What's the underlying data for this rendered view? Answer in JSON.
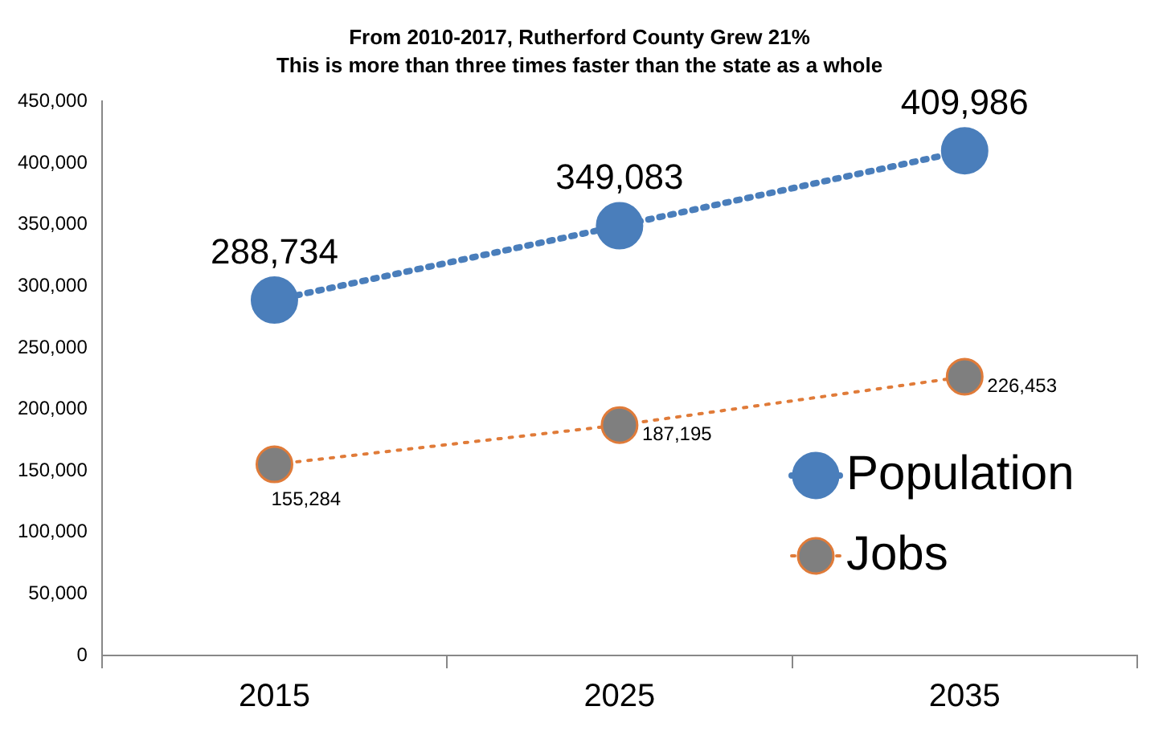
{
  "chart_data": {
    "type": "line",
    "title": "From 2010-2017, Rutherford County Grew 21%",
    "subtitle": "This is more than three times faster than the state as a whole",
    "categories": [
      "2015",
      "2025",
      "2035"
    ],
    "series": [
      {
        "name": "Population",
        "color": "#4a7ebb",
        "values": [
          288734,
          349083,
          409986
        ],
        "value_labels": [
          "288,734",
          "349,083",
          "409,986"
        ]
      },
      {
        "name": "Jobs",
        "color": "#e07b39",
        "values": [
          155284,
          187195,
          226453
        ],
        "value_labels": [
          "155,284",
          "187,195",
          "226,453"
        ]
      }
    ],
    "ylim": [
      0,
      450000
    ],
    "yticks": [
      {
        "value": 0,
        "label": "0"
      },
      {
        "value": 50000,
        "label": "50,000"
      },
      {
        "value": 100000,
        "label": "100,000"
      },
      {
        "value": 150000,
        "label": "150,000"
      },
      {
        "value": 200000,
        "label": "200,000"
      },
      {
        "value": 250000,
        "label": "250,000"
      },
      {
        "value": 300000,
        "label": "300,000"
      },
      {
        "value": 350000,
        "label": "350,000"
      },
      {
        "value": 400000,
        "label": "400,000"
      },
      {
        "value": 450000,
        "label": "450,000"
      }
    ],
    "grid": false,
    "legend": "bottom right",
    "marker": "circle",
    "line_style": "dotted"
  }
}
